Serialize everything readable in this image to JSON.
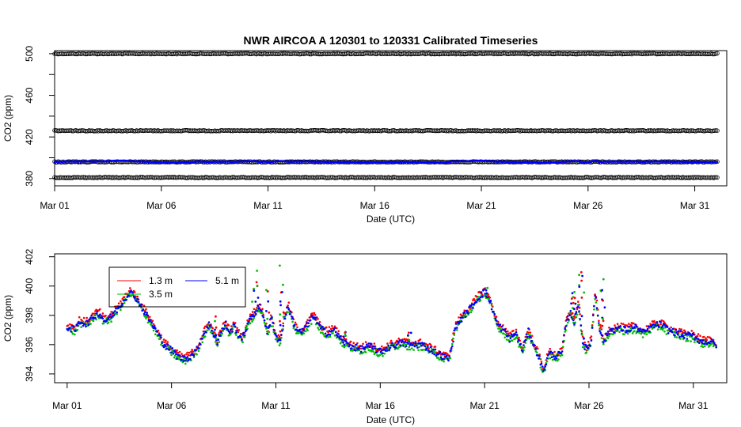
{
  "chart_data": [
    {
      "type": "scatter",
      "title": "NWR   AIRCOA  A   120301  to  120331   Calibrated Timeseries",
      "xlabel": "Date (UTC)",
      "ylabel": "CO2 (ppm)",
      "xlim": [
        0,
        31.5
      ],
      "ylim": [
        373,
        503
      ],
      "x_ticks": [
        {
          "x": 0,
          "label": "Mar 01"
        },
        {
          "x": 5,
          "label": "Mar 06"
        },
        {
          "x": 10,
          "label": "Mar 11"
        },
        {
          "x": 15,
          "label": "Mar 16"
        },
        {
          "x": 20,
          "label": "Mar 21"
        },
        {
          "x": 25,
          "label": "Mar 26"
        },
        {
          "x": 30,
          "label": "Mar 31"
        }
      ],
      "y_ticks": [
        {
          "y": 380,
          "label": "380"
        },
        {
          "y": 420,
          "label": "420"
        },
        {
          "y": 460,
          "label": "460"
        },
        {
          "y": 500,
          "label": "500"
        }
      ],
      "grid": false,
      "series": [
        {
          "role": "reference",
          "color": "#000000",
          "levels": [
            500,
            426,
            396,
            381
          ],
          "x_range": [
            0,
            31.1
          ]
        },
        {
          "role": "sample",
          "color": "#0000ff",
          "y_range": [
            395,
            399
          ],
          "x_range": [
            0,
            31.1
          ]
        }
      ]
    },
    {
      "type": "scatter",
      "xlabel": "Date (UTC)",
      "ylabel": "CO2 (ppm)",
      "xlim": [
        -0.6,
        31.6
      ],
      "ylim": [
        393.4,
        402.2
      ],
      "x_ticks": [
        {
          "x": 0,
          "label": "Mar 01"
        },
        {
          "x": 5,
          "label": "Mar 06"
        },
        {
          "x": 10,
          "label": "Mar 11"
        },
        {
          "x": 15,
          "label": "Mar 16"
        },
        {
          "x": 20,
          "label": "Mar 21"
        },
        {
          "x": 25,
          "label": "Mar 26"
        },
        {
          "x": 30,
          "label": "Mar 31"
        }
      ],
      "y_ticks": [
        {
          "y": 394,
          "label": "394"
        },
        {
          "y": 396,
          "label": "396"
        },
        {
          "y": 398,
          "label": "398"
        },
        {
          "y": 400,
          "label": "400"
        },
        {
          "y": 402,
          "label": "402"
        }
      ],
      "grid": false,
      "legend": {
        "placement": "top-left",
        "entries": [
          {
            "name": "1.3 m",
            "color": "#ff0000"
          },
          {
            "name": "5.1 m",
            "color": "#0000ff"
          },
          {
            "name": "3.5 m",
            "color": "#00bb00"
          }
        ]
      },
      "baseline": [
        [
          0,
          397.2
        ],
        [
          0.4,
          397.0
        ],
        [
          0.6,
          397.6
        ],
        [
          0.9,
          397.4
        ],
        [
          1.2,
          397.8
        ],
        [
          1.5,
          398.2
        ],
        [
          1.8,
          397.6
        ],
        [
          2.1,
          397.9
        ],
        [
          2.4,
          398.4
        ],
        [
          2.7,
          399.0
        ],
        [
          3.0,
          399.6
        ],
        [
          3.3,
          399.2
        ],
        [
          3.6,
          398.5
        ],
        [
          3.9,
          397.8
        ],
        [
          4.2,
          397.1
        ],
        [
          4.6,
          396.1
        ],
        [
          5.0,
          395.6
        ],
        [
          5.3,
          395.2
        ],
        [
          5.6,
          395.0
        ],
        [
          5.9,
          395.2
        ],
        [
          6.2,
          395.6
        ],
        [
          6.5,
          396.6
        ],
        [
          6.8,
          397.4
        ],
        [
          7.0,
          396.8
        ],
        [
          7.2,
          396.2
        ],
        [
          7.4,
          396.9
        ],
        [
          7.6,
          397.4
        ],
        [
          7.8,
          396.8
        ],
        [
          8.0,
          397.3
        ],
        [
          8.2,
          396.7
        ],
        [
          8.4,
          396.4
        ],
        [
          8.6,
          397.2
        ],
        [
          8.8,
          397.8
        ],
        [
          9.0,
          398.2
        ],
        [
          9.2,
          398.6
        ],
        [
          9.4,
          398.0
        ],
        [
          9.6,
          396.8
        ],
        [
          9.8,
          397.8
        ],
        [
          10.0,
          396.6
        ],
        [
          10.2,
          396.2
        ],
        [
          10.4,
          397.8
        ],
        [
          10.6,
          398.6
        ],
        [
          10.9,
          397.2
        ],
        [
          11.2,
          396.8
        ],
        [
          11.5,
          397.3
        ],
        [
          11.8,
          398.0
        ],
        [
          12.1,
          397.2
        ],
        [
          12.4,
          396.8
        ],
        [
          12.8,
          397.0
        ],
        [
          13.2,
          396.2
        ],
        [
          13.6,
          395.9
        ],
        [
          14.0,
          395.7
        ],
        [
          14.5,
          395.9
        ],
        [
          15.0,
          395.5
        ],
        [
          15.5,
          395.9
        ],
        [
          16.0,
          396.1
        ],
        [
          16.5,
          396.0
        ],
        [
          17.0,
          396.0
        ],
        [
          17.5,
          395.6
        ],
        [
          18.0,
          395.2
        ],
        [
          18.3,
          395.0
        ],
        [
          18.6,
          397.2
        ],
        [
          18.9,
          397.8
        ],
        [
          19.2,
          398.3
        ],
        [
          19.5,
          398.8
        ],
        [
          19.8,
          399.4
        ],
        [
          20.0,
          399.6
        ],
        [
          20.3,
          398.8
        ],
        [
          20.6,
          397.4
        ],
        [
          20.9,
          397.0
        ],
        [
          21.2,
          396.4
        ],
        [
          21.5,
          396.8
        ],
        [
          21.8,
          395.6
        ],
        [
          22.1,
          396.9
        ],
        [
          22.4,
          395.8
        ],
        [
          22.6,
          395.2
        ],
        [
          22.8,
          394.2
        ],
        [
          23.1,
          395.4
        ],
        [
          23.4,
          395.2
        ],
        [
          23.7,
          395.4
        ],
        [
          23.9,
          397.4
        ],
        [
          24.1,
          398.2
        ],
        [
          24.3,
          397.6
        ],
        [
          24.5,
          398.8
        ],
        [
          24.7,
          396.2
        ],
        [
          24.9,
          395.6
        ],
        [
          25.1,
          396.2
        ],
        [
          25.3,
          399.6
        ],
        [
          25.5,
          397.2
        ],
        [
          25.7,
          396.2
        ],
        [
          26.0,
          397.0
        ],
        [
          26.4,
          397.1
        ],
        [
          26.8,
          397.0
        ],
        [
          27.2,
          397.2
        ],
        [
          27.6,
          396.8
        ],
        [
          28.0,
          397.2
        ],
        [
          28.4,
          397.4
        ],
        [
          28.8,
          397.0
        ],
        [
          29.2,
          396.8
        ],
        [
          29.6,
          396.6
        ],
        [
          30.0,
          396.6
        ],
        [
          30.4,
          396.2
        ],
        [
          30.8,
          396.2
        ],
        [
          31.1,
          396.0
        ]
      ],
      "spikes": [
        [
          7.1,
          398.0
        ],
        [
          8.9,
          400.5
        ],
        [
          9.1,
          401.2
        ],
        [
          9.6,
          400.8
        ],
        [
          10.2,
          401.4
        ],
        [
          10.3,
          400.6
        ],
        [
          24.2,
          400.2
        ],
        [
          24.3,
          399.6
        ],
        [
          24.6,
          400.8
        ],
        [
          24.7,
          401.0
        ],
        [
          25.6,
          400.6
        ],
        [
          25.7,
          400.8
        ],
        [
          20.1,
          400.2
        ],
        [
          16.4,
          397.2
        ],
        [
          13.3,
          397.0
        ]
      ]
    }
  ]
}
